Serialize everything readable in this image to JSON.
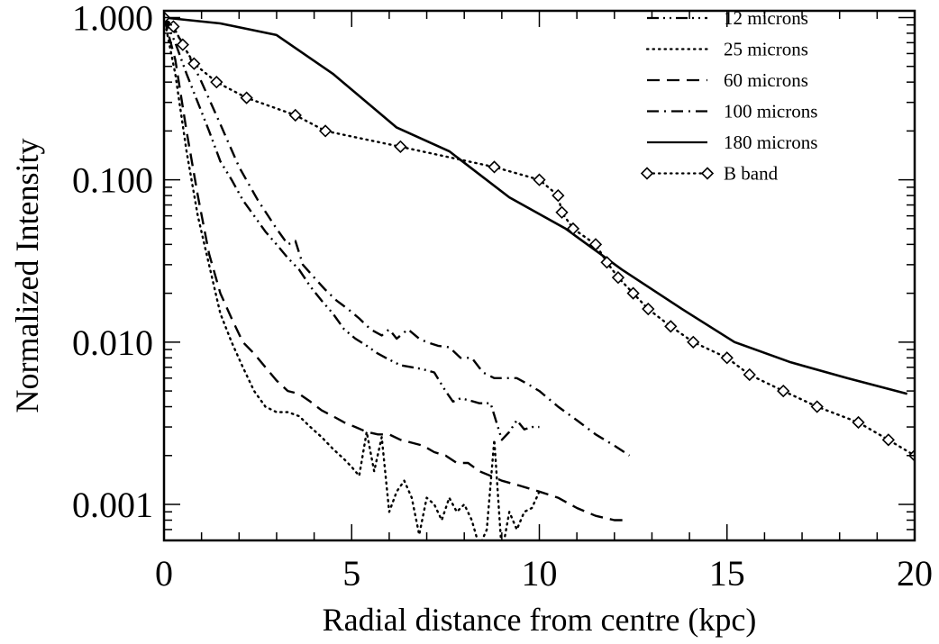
{
  "chart_data": {
    "type": "line",
    "title": "",
    "xlabel": "Radial distance from centre (kpc)",
    "ylabel": "Normalized Intensity",
    "xlim": [
      0,
      20
    ],
    "ylim": [
      0.0006,
      1.1
    ],
    "yscale": "log",
    "xticks": [
      0,
      5,
      10,
      15,
      20
    ],
    "xtick_labels": [
      "0",
      "5",
      "10",
      "15",
      "20"
    ],
    "yticks": [
      1.0,
      0.1,
      0.01,
      0.001
    ],
    "ytick_labels": [
      "1.000",
      "0.100",
      "0.010",
      "0.001"
    ],
    "legend_position": "top-right",
    "grid": false,
    "series": [
      {
        "name": "12 microns",
        "dash": "dash-dot-dot",
        "x": [
          0,
          0.3,
          0.6,
          0.9,
          1.2,
          1.5,
          1.8,
          2.1,
          2.4,
          2.7,
          3.0,
          3.3,
          3.6,
          3.9,
          4.2,
          4.5,
          4.8,
          5.1,
          5.4,
          5.7,
          6.0,
          6.3,
          6.6,
          6.9,
          7.2,
          7.5,
          7.7,
          7.9,
          8.1,
          8.4,
          8.7,
          9.0,
          9.2,
          9.4,
          9.6,
          9.8,
          10.0
        ],
        "y": [
          1.0,
          0.7,
          0.45,
          0.3,
          0.2,
          0.13,
          0.1,
          0.075,
          0.06,
          0.048,
          0.04,
          0.033,
          0.028,
          0.022,
          0.018,
          0.015,
          0.012,
          0.0105,
          0.0095,
          0.0085,
          0.0078,
          0.0072,
          0.007,
          0.0068,
          0.0065,
          0.005,
          0.0043,
          0.0045,
          0.0044,
          0.0042,
          0.0042,
          0.0025,
          0.0028,
          0.0033,
          0.0029,
          0.003,
          0.003
        ]
      },
      {
        "name": "25 microns",
        "dash": "dotted",
        "x": [
          0,
          0.3,
          0.6,
          0.9,
          1.2,
          1.5,
          1.8,
          2.1,
          2.4,
          2.7,
          3.0,
          3.3,
          3.6,
          3.9,
          4.2,
          4.5,
          4.8,
          5.0,
          5.2,
          5.4,
          5.6,
          5.8,
          6.0,
          6.2,
          6.4,
          6.6,
          6.8,
          7.0,
          7.2,
          7.4,
          7.6,
          7.8,
          8.0,
          8.2,
          8.4,
          8.6,
          8.8,
          9.0,
          9.2,
          9.4,
          9.6,
          9.8,
          10.0
        ],
        "y": [
          1.0,
          0.45,
          0.15,
          0.06,
          0.03,
          0.015,
          0.01,
          0.007,
          0.005,
          0.004,
          0.0037,
          0.0037,
          0.0035,
          0.003,
          0.0026,
          0.0022,
          0.0019,
          0.0017,
          0.0015,
          0.0028,
          0.0016,
          0.0026,
          0.0009,
          0.0012,
          0.0014,
          0.0011,
          0.00065,
          0.0011,
          0.001,
          0.0008,
          0.0011,
          0.0009,
          0.001,
          0.0008,
          0.00055,
          0.0007,
          0.0025,
          0.0005,
          0.0009,
          0.0007,
          0.0009,
          0.00095,
          0.0012
        ]
      },
      {
        "name": "60 microns",
        "dash": "dashed",
        "x": [
          0,
          0.3,
          0.6,
          0.9,
          1.2,
          1.5,
          1.8,
          2.1,
          2.4,
          2.7,
          3.0,
          3.3,
          3.6,
          3.9,
          4.2,
          4.5,
          4.8,
          5.1,
          5.4,
          5.7,
          6.0,
          6.3,
          6.6,
          6.9,
          7.2,
          7.5,
          7.8,
          8.1,
          8.4,
          8.7,
          9.0,
          9.5,
          10.0,
          10.5,
          11.0,
          11.5,
          12.0,
          12.4
        ],
        "y": [
          1.0,
          0.55,
          0.2,
          0.08,
          0.035,
          0.02,
          0.014,
          0.01,
          0.0085,
          0.007,
          0.0058,
          0.005,
          0.0048,
          0.0043,
          0.0038,
          0.0035,
          0.0032,
          0.003,
          0.0028,
          0.0027,
          0.0027,
          0.0025,
          0.0024,
          0.0023,
          0.0021,
          0.002,
          0.0018,
          0.0018,
          0.0016,
          0.0015,
          0.0014,
          0.0013,
          0.0012,
          0.0011,
          0.00095,
          0.00085,
          0.0008,
          0.0008
        ]
      },
      {
        "name": "100 microns",
        "dash": "dash-dot",
        "x": [
          0,
          0.5,
          1.0,
          1.5,
          2.0,
          2.5,
          3.0,
          3.3,
          3.5,
          3.7,
          4.0,
          4.3,
          4.6,
          4.9,
          5.2,
          5.5,
          5.8,
          6.0,
          6.2,
          6.5,
          6.8,
          7.0,
          7.3,
          7.6,
          7.9,
          8.2,
          8.5,
          8.8,
          9.1,
          9.4,
          9.7,
          10.0,
          10.5,
          11.0,
          11.5,
          12.0,
          12.4
        ],
        "y": [
          1.0,
          0.7,
          0.4,
          0.22,
          0.12,
          0.075,
          0.05,
          0.04,
          0.042,
          0.03,
          0.025,
          0.021,
          0.018,
          0.016,
          0.014,
          0.012,
          0.011,
          0.012,
          0.0105,
          0.012,
          0.0105,
          0.01,
          0.0095,
          0.0093,
          0.008,
          0.008,
          0.0065,
          0.006,
          0.006,
          0.006,
          0.0055,
          0.005,
          0.004,
          0.0033,
          0.0027,
          0.0023,
          0.002
        ]
      },
      {
        "name": "180 microns",
        "dash": "solid",
        "x": [
          0,
          1.5,
          3.0,
          4.5,
          6.2,
          7.6,
          9.2,
          10.7,
          12.2,
          13.8,
          15.2,
          16.7,
          18.2,
          19.8
        ],
        "y": [
          1.0,
          0.92,
          0.78,
          0.45,
          0.21,
          0.15,
          0.078,
          0.05,
          0.028,
          0.016,
          0.01,
          0.0075,
          0.006,
          0.0048
        ]
      },
      {
        "name": "B band",
        "dash": "dotted",
        "marker": "diamond",
        "x": [
          0.0,
          0.25,
          0.5,
          0.8,
          1.4,
          2.2,
          3.5,
          4.3,
          6.3,
          8.8,
          10.0,
          10.5,
          10.6,
          10.9,
          11.5,
          11.8,
          12.1,
          12.5,
          12.9,
          13.5,
          14.1,
          15.0,
          15.6,
          16.5,
          17.4,
          18.5,
          19.3,
          20.0
        ],
        "y": [
          1.0,
          0.88,
          0.68,
          0.52,
          0.4,
          0.32,
          0.25,
          0.2,
          0.16,
          0.12,
          0.1,
          0.08,
          0.063,
          0.05,
          0.04,
          0.031,
          0.025,
          0.02,
          0.016,
          0.0125,
          0.01,
          0.008,
          0.0063,
          0.005,
          0.004,
          0.0032,
          0.0025,
          0.002
        ]
      }
    ]
  }
}
